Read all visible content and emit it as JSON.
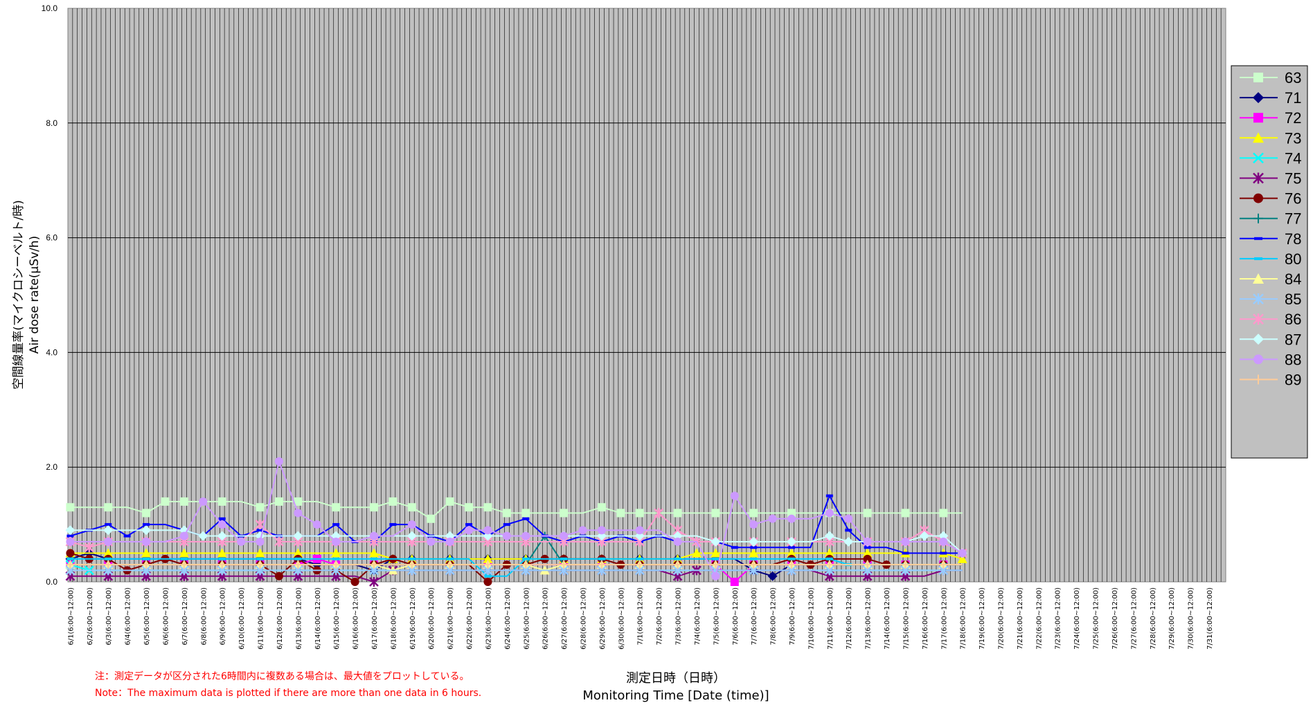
{
  "chart_data": {
    "type": "line",
    "ylabel_ja": "空間線量率(マイクロシーベルト/時)",
    "ylabel_en": "Air dose rate(μSv/h)",
    "xlabel_ja": "測定日時（日時）",
    "xlabel_en": "Monitoring Time [Date (time)]",
    "note_ja": "注：測定データが区分された6時間内に複数ある場合は、最大値をプロットしている。",
    "note_en": "Note：The maximum data is plotted if there are more than one data in 6 hours.",
    "ylim": [
      0,
      10
    ],
    "yticks": [
      "0.0",
      "2.0",
      "4.0",
      "6.0",
      "8.0",
      "10.0"
    ],
    "x_tick_labels": [
      "6/1(6:00~12:00)",
      "6/2(6:00~12:00)",
      "6/3(6:00~12:00)",
      "6/4(6:00~12:00)",
      "6/5(6:00~12:00)",
      "6/6(6:00~12:00)",
      "6/7(6:00~12:00)",
      "6/8(6:00~12:00)",
      "6/9(6:00~12:00)",
      "6/10(6:00~12:00)",
      "6/11(6:00~12:00)",
      "6/12(6:00~12:00)",
      "6/13(6:00~12:00)",
      "6/14(6:00~12:00)",
      "6/15(6:00~12:00)",
      "6/16(6:00~12:00)",
      "6/17(6:00~12:00)",
      "6/18(6:00~12:00)",
      "6/19(6:00~12:00)",
      "6/20(6:00~12:00)",
      "6/21(6:00~12:00)",
      "6/22(6:00~12:00)",
      "6/23(6:00~12:00)",
      "6/24(6:00~12:00)",
      "6/25(6:00~12:00)",
      "6/26(6:00~12:00)",
      "6/27(6:00~12:00)",
      "6/28(6:00~12:00)",
      "6/29(6:00~12:00)",
      "6/30(6:00~12:00)",
      "7/1(6:00~12:00)",
      "7/2(6:00~12:00)",
      "7/3(6:00~12:00)",
      "7/4(6:00~12:00)",
      "7/5(6:00~12:00)",
      "7/6(6:00~12:00)",
      "7/7(6:00~12:00)",
      "7/8(6:00~12:00)",
      "7/9(6:00~12:00)",
      "7/10(6:00~12:00)",
      "7/11(6:00~12:00)",
      "7/12(6:00~12:00)",
      "7/13(6:00~12:00)",
      "7/14(6:00~12:00)",
      "7/15(6:00~12:00)",
      "7/16(6:00~12:00)",
      "7/17(6:00~12:00)",
      "7/18(6:00~12:00)",
      "7/19(6:00~12:00)",
      "7/20(6:00~12:00)",
      "7/21(6:00~12:00)",
      "7/22(6:00~12:00)",
      "7/23(6:00~12:00)",
      "7/24(6:00~12:00)",
      "7/25(6:00~12:00)",
      "7/26(6:00~12:00)",
      "7/27(6:00~12:00)",
      "7/28(6:00~12:00)",
      "7/29(6:00~12:00)",
      "7/30(6:00~12:00)",
      "7/31(6:00~12:00)"
    ],
    "x_ticks": [
      "6/1",
      "6/2",
      "6/3",
      "6/4",
      "6/5",
      "6/6",
      "6/7",
      "6/8",
      "6/9",
      "6/10",
      "6/11",
      "6/12",
      "6/13",
      "6/14",
      "6/15",
      "6/16",
      "6/17",
      "6/18",
      "6/19",
      "6/20",
      "6/21",
      "6/22",
      "6/23",
      "6/24",
      "6/25",
      "6/26",
      "6/27",
      "6/28",
      "6/29",
      "6/30",
      "7/1",
      "7/2",
      "7/3",
      "7/4",
      "7/5",
      "7/6",
      "7/7",
      "7/8",
      "7/9",
      "7/10",
      "7/11",
      "7/12",
      "7/13",
      "7/14",
      "7/15",
      "7/16",
      "7/17",
      "7/18",
      "7/19",
      "7/20",
      "7/21",
      "7/22",
      "7/23",
      "7/24",
      "7/25",
      "7/26",
      "7/27",
      "7/28",
      "7/29",
      "7/30",
      "7/31"
    ],
    "plot_background": "#c0c0c0",
    "grid": true,
    "legend_position": "right",
    "series": [
      {
        "name": "63",
        "color": "#ccffcc",
        "marker": "square",
        "values": [
          1.3,
          1.3,
          1.3,
          1.3,
          1.2,
          1.4,
          1.4,
          1.4,
          1.4,
          1.4,
          1.3,
          1.4,
          1.4,
          1.4,
          1.3,
          1.3,
          1.3,
          1.4,
          1.3,
          1.1,
          1.4,
          1.3,
          1.3,
          1.2,
          1.2,
          1.2,
          1.2,
          1.2,
          1.3,
          1.2,
          1.2,
          1.2,
          1.2,
          1.2,
          1.2,
          1.2,
          1.2,
          1.2,
          1.2,
          1.2,
          1.2,
          1.2,
          1.2,
          1.2,
          1.2,
          1.2,
          1.2,
          1.2
        ]
      },
      {
        "name": "71",
        "color": "#000080",
        "marker": "diamond",
        "values": [
          0.4,
          0.5,
          0.4,
          0.4,
          0.4,
          0.4,
          0.4,
          0.4,
          0.4,
          0.4,
          0.4,
          0.4,
          0.4,
          0.3,
          0.3,
          0.3,
          0.2,
          0.4,
          0.4,
          0.4,
          0.4,
          0.4,
          0.4,
          0.4,
          0.4,
          0.4,
          0.4,
          0.4,
          0.4,
          0.4,
          0.4,
          0.4,
          0.4,
          0.4,
          0.4,
          0.4,
          0.2,
          0.1,
          0.3,
          0.3,
          0.3,
          0.3,
          0.3,
          0.3,
          0.3,
          0.3,
          0.3,
          0.3
        ]
      },
      {
        "name": "72",
        "color": "#ff00ff",
        "marker": "square",
        "values": [
          0.3,
          0.3,
          0.3,
          0.3,
          0.3,
          0.3,
          0.3,
          0.3,
          0.3,
          0.3,
          0.3,
          0.3,
          0.3,
          0.4,
          0.3,
          0.3,
          0.3,
          0.3,
          0.3,
          0.3,
          0.3,
          0.3,
          0.3,
          0.3,
          0.3,
          0.3,
          0.3,
          0.3,
          0.3,
          0.3,
          0.3,
          0.3,
          0.3,
          0.3,
          0.3,
          0.0,
          0.3,
          0.3,
          0.3,
          0.3,
          0.3,
          0.3,
          0.3,
          0.3,
          0.3,
          0.3,
          0.3,
          0.3
        ]
      },
      {
        "name": "73",
        "color": "#ffff00",
        "marker": "triangle",
        "values": [
          0.5,
          0.5,
          0.5,
          0.5,
          0.5,
          0.5,
          0.5,
          0.5,
          0.5,
          0.5,
          0.5,
          0.5,
          0.5,
          0.5,
          0.5,
          0.5,
          0.5,
          0.4,
          0.4,
          0.4,
          0.4,
          0.4,
          0.4,
          0.4,
          0.4,
          0.4,
          0.4,
          0.4,
          0.4,
          0.4,
          0.4,
          0.4,
          0.4,
          0.5,
          0.5,
          0.5,
          0.5,
          0.5,
          0.5,
          0.5,
          0.5,
          0.5,
          0.5,
          0.5,
          0.5,
          0.5,
          0.5,
          0.4
        ]
      },
      {
        "name": "74",
        "color": "#00ffff",
        "marker": "x",
        "values": [
          0.3,
          0.2,
          0.2,
          0.2,
          0.2,
          0.2,
          0.2,
          0.2,
          0.2,
          0.2,
          0.2,
          0.2,
          0.2,
          0.2,
          0.2,
          0.2,
          0.2,
          0.2,
          0.2,
          0.2,
          0.2,
          0.2,
          0.2,
          0.2,
          0.2,
          0.2,
          0.2,
          0.2,
          0.2,
          0.2,
          0.2,
          0.2,
          0.2,
          0.2,
          0.2,
          0.2,
          0.2,
          0.2,
          0.2,
          0.2,
          0.2,
          0.2,
          0.2,
          0.2,
          0.2,
          0.2,
          0.2,
          0.2
        ]
      },
      {
        "name": "75",
        "color": "#800080",
        "marker": "star",
        "values": [
          0.1,
          0.1,
          0.1,
          0.1,
          0.1,
          0.1,
          0.1,
          0.1,
          0.1,
          0.1,
          0.1,
          0.1,
          0.1,
          0.1,
          0.1,
          0.1,
          0.0,
          0.2,
          0.2,
          0.2,
          0.2,
          0.2,
          0.2,
          0.2,
          0.2,
          0.2,
          0.2,
          0.2,
          0.2,
          0.2,
          0.2,
          0.2,
          0.1,
          0.2,
          0.2,
          0.2,
          0.2,
          0.2,
          0.2,
          0.2,
          0.1,
          0.1,
          0.1,
          0.1,
          0.1,
          0.1,
          0.2,
          0.2
        ]
      },
      {
        "name": "76",
        "color": "#800000",
        "marker": "circle",
        "values": [
          0.5,
          0.4,
          0.4,
          0.2,
          0.3,
          0.4,
          0.3,
          0.3,
          0.3,
          0.3,
          0.3,
          0.1,
          0.4,
          0.2,
          0.2,
          0.0,
          0.3,
          0.4,
          0.3,
          0.3,
          0.3,
          0.3,
          0.0,
          0.3,
          0.3,
          0.4,
          0.4,
          0.4,
          0.4,
          0.3,
          0.3,
          0.3,
          0.3,
          0.3,
          0.3,
          0.3,
          0.3,
          0.3,
          0.4,
          0.3,
          0.4,
          0.4,
          0.4,
          0.3,
          0.3,
          0.3,
          0.3,
          0.3
        ]
      },
      {
        "name": "77",
        "color": "#008080",
        "marker": "plus",
        "values": [
          0.3,
          0.3,
          0.3,
          0.3,
          0.3,
          0.3,
          0.3,
          0.3,
          0.3,
          0.3,
          0.3,
          0.3,
          0.3,
          0.3,
          0.3,
          0.3,
          0.3,
          0.3,
          0.3,
          0.3,
          0.3,
          0.3,
          0.3,
          0.3,
          0.3,
          0.8,
          0.3,
          0.3,
          0.3,
          0.3,
          0.3,
          0.3,
          0.3,
          0.3,
          0.3,
          0.3,
          0.3,
          0.3,
          0.3,
          0.3,
          0.3,
          0.3,
          0.3,
          0.3,
          0.3,
          0.3,
          0.3,
          0.3
        ]
      },
      {
        "name": "78",
        "color": "#0000ff",
        "marker": "dash",
        "values": [
          0.8,
          0.9,
          1.0,
          0.8,
          1.0,
          1.0,
          0.9,
          0.8,
          1.1,
          0.8,
          0.9,
          0.8,
          0.8,
          0.8,
          1.0,
          0.7,
          0.7,
          1.0,
          1.0,
          0.8,
          0.7,
          1.0,
          0.8,
          1.0,
          1.1,
          0.8,
          0.7,
          0.8,
          0.7,
          0.8,
          0.7,
          0.8,
          0.7,
          0.7,
          0.7,
          0.6,
          0.6,
          0.6,
          0.6,
          0.6,
          1.5,
          0.9,
          0.6,
          0.6,
          0.5,
          0.5,
          0.5,
          0.5
        ]
      },
      {
        "name": "80",
        "color": "#00ccff",
        "marker": "dash",
        "values": [
          0.4,
          0.4,
          0.4,
          0.4,
          0.4,
          0.4,
          0.4,
          0.4,
          0.4,
          0.4,
          0.4,
          0.4,
          0.4,
          0.4,
          0.4,
          0.4,
          0.4,
          0.4,
          0.4,
          0.4,
          0.4,
          0.4,
          0.1,
          0.1,
          0.4,
          0.4,
          0.4,
          0.4,
          0.4,
          0.4,
          0.4,
          0.4,
          0.4,
          0.4,
          0.4,
          0.4,
          0.4,
          0.4,
          0.4,
          0.4,
          0.4,
          0.3,
          0.3,
          0.3,
          0.3,
          0.3,
          0.3,
          0.3
        ]
      },
      {
        "name": "84",
        "color": "#ffff99",
        "marker": "triangle",
        "values": [
          0.3,
          0.3,
          0.3,
          0.3,
          0.3,
          0.3,
          0.3,
          0.3,
          0.3,
          0.3,
          0.3,
          0.3,
          0.3,
          0.3,
          0.3,
          0.3,
          0.3,
          0.2,
          0.3,
          0.3,
          0.3,
          0.3,
          0.3,
          0.3,
          0.3,
          0.2,
          0.3,
          0.3,
          0.3,
          0.3,
          0.3,
          0.3,
          0.3,
          0.3,
          0.3,
          0.3,
          0.3,
          0.3,
          0.3,
          0.3,
          0.3,
          0.3,
          0.3,
          0.3,
          0.3,
          0.3,
          0.3,
          0.3
        ]
      },
      {
        "name": "85",
        "color": "#99ccff",
        "marker": "star",
        "values": [
          0.2,
          0.2,
          0.2,
          0.2,
          0.2,
          0.2,
          0.2,
          0.2,
          0.2,
          0.2,
          0.2,
          0.2,
          0.2,
          0.2,
          0.2,
          0.2,
          0.2,
          0.2,
          0.2,
          0.2,
          0.2,
          0.2,
          0.2,
          0.2,
          0.2,
          0.2,
          0.2,
          0.2,
          0.2,
          0.2,
          0.2,
          0.2,
          0.2,
          0.2,
          0.2,
          0.2,
          0.2,
          0.2,
          0.2,
          0.2,
          0.2,
          0.2,
          0.2,
          0.2,
          0.2,
          0.2,
          0.2,
          0.2
        ]
      },
      {
        "name": "86",
        "color": "#ff99cc",
        "marker": "star",
        "values": [
          0.7,
          0.6,
          0.7,
          0.7,
          0.7,
          0.7,
          0.7,
          0.7,
          0.7,
          0.7,
          1.0,
          0.7,
          0.7,
          0.7,
          0.7,
          0.7,
          0.7,
          0.7,
          0.7,
          0.7,
          0.7,
          0.7,
          0.7,
          0.7,
          0.7,
          0.7,
          0.7,
          0.7,
          0.7,
          0.7,
          0.7,
          1.2,
          0.9,
          0.7,
          0.7,
          0.7,
          0.7,
          0.7,
          0.7,
          0.7,
          0.7,
          0.7,
          0.7,
          0.7,
          0.7,
          0.9,
          0.7,
          0.5
        ]
      },
      {
        "name": "87",
        "color": "#ccffff",
        "marker": "diamond",
        "values": [
          0.9,
          0.9,
          0.9,
          0.9,
          0.9,
          0.9,
          0.9,
          0.8,
          0.8,
          0.8,
          0.8,
          0.8,
          0.8,
          0.8,
          0.8,
          0.8,
          0.8,
          0.8,
          0.8,
          0.8,
          0.8,
          0.8,
          0.8,
          0.8,
          0.8,
          0.8,
          0.8,
          0.8,
          0.8,
          0.8,
          0.8,
          0.8,
          0.8,
          0.8,
          0.7,
          0.7,
          0.7,
          0.7,
          0.7,
          0.7,
          0.8,
          0.7,
          0.7,
          0.7,
          0.7,
          0.8,
          0.8,
          0.5
        ]
      },
      {
        "name": "88",
        "color": "#cc99ff",
        "marker": "circle",
        "values": [
          0.7,
          0.7,
          0.7,
          0.7,
          0.7,
          0.7,
          0.8,
          1.4,
          1.0,
          0.7,
          0.7,
          2.1,
          1.2,
          1.0,
          0.7,
          0.7,
          0.8,
          0.8,
          1.0,
          0.7,
          0.7,
          0.9,
          0.9,
          0.8,
          0.8,
          0.8,
          0.8,
          0.9,
          0.9,
          0.9,
          0.9,
          0.9,
          0.7,
          0.7,
          0.1,
          1.5,
          1.0,
          1.1,
          1.1,
          1.1,
          1.2,
          1.1,
          0.7,
          0.7,
          0.7,
          0.7,
          0.7,
          0.5
        ]
      },
      {
        "name": "89",
        "color": "#ffcc99",
        "marker": "plus",
        "values": [
          0.3,
          0.3,
          0.3,
          0.3,
          0.3,
          0.3,
          0.3,
          0.3,
          0.3,
          0.3,
          0.3,
          0.3,
          0.3,
          0.3,
          0.3,
          0.3,
          0.3,
          0.3,
          0.3,
          0.3,
          0.3,
          0.3,
          0.3,
          0.3,
          0.3,
          0.3,
          0.3,
          0.3,
          0.3,
          0.3,
          0.3,
          0.3,
          0.3,
          0.3,
          0.3,
          0.3,
          0.3,
          0.3,
          0.3,
          0.3,
          0.3,
          0.3,
          0.3,
          0.3,
          0.3,
          0.3,
          0.3,
          0.3
        ]
      }
    ]
  }
}
